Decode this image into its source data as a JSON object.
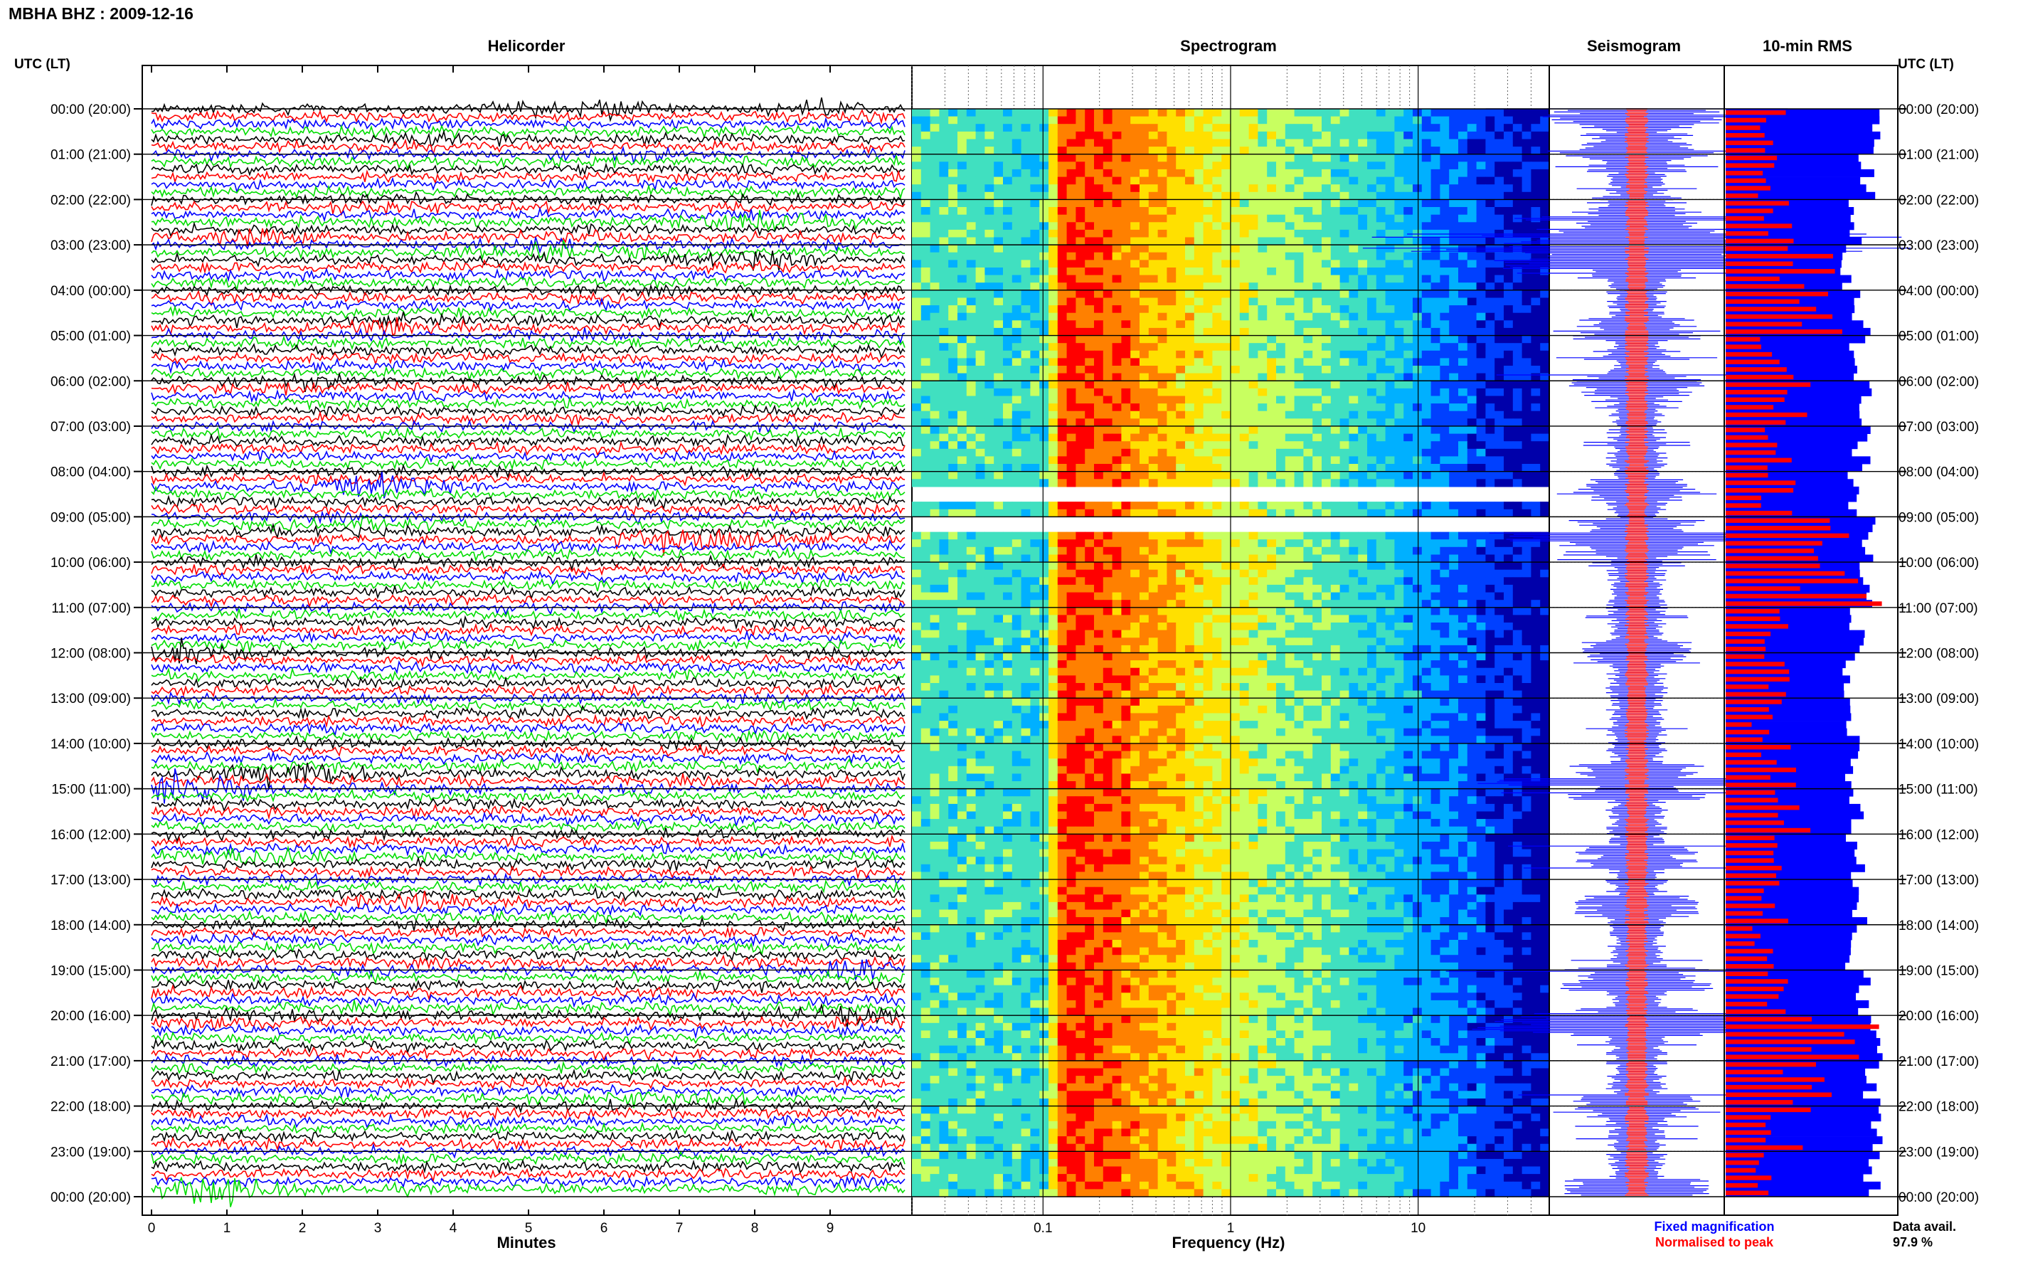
{
  "header": {
    "station_title": "MBHA BHZ : 2009-12-16",
    "time_axis_label": "UTC (LT)"
  },
  "panels": {
    "helicorder": "Helicorder",
    "spectrogram": "Spectrogram",
    "seismogram": "Seismogram",
    "rms": "10-min RMS"
  },
  "colors": {
    "trace_cycle": [
      "#000000",
      "#ff0000",
      "#0000ff",
      "#00dd00"
    ],
    "fixed": "#0000ff",
    "normalised": "#ff0000",
    "rms_fixed": "#0000ff",
    "rms_peak": "#ff0000"
  },
  "legend": {
    "fixed": "Fixed magnification",
    "normalised": "Normalised to peak",
    "data_avail_label": "Data avail.",
    "data_avail_value": "97.9 %"
  },
  "chart_data": [
    {
      "type": "line",
      "name": "helicorder",
      "title": "Helicorder",
      "xlabel": "Minutes",
      "xlim": [
        0,
        10
      ],
      "x_ticks": [
        "0",
        "1",
        "2",
        "3",
        "4",
        "5",
        "6",
        "7",
        "8",
        "9"
      ],
      "lines_per_hour": 6,
      "minutes_per_line": 10,
      "hour_labels": [
        "00:00 (20:00)",
        "01:00 (21:00)",
        "02:00 (22:00)",
        "03:00 (23:00)",
        "04:00 (00:00)",
        "05:00 (01:00)",
        "06:00 (02:00)",
        "07:00 (03:00)",
        "08:00 (04:00)",
        "09:00 (05:00)",
        "10:00 (06:00)",
        "11:00 (07:00)",
        "12:00 (08:00)",
        "13:00 (09:00)",
        "14:00 (10:00)",
        "15:00 (11:00)",
        "16:00 (12:00)",
        "17:00 (13:00)",
        "18:00 (14:00)",
        "19:00 (15:00)",
        "20:00 (16:00)",
        "21:00 (17:00)",
        "22:00 (18:00)",
        "23:00 (19:00)",
        "00:00 (20:00)"
      ],
      "events": [
        {
          "hour": 0.1,
          "minute": 5.8,
          "amp": 2.5
        },
        {
          "hour": 0.2,
          "minute": 9.0,
          "amp": 2.2
        },
        {
          "hour": 0.8,
          "minute": 3.6,
          "amp": 2.4
        },
        {
          "hour": 1.15,
          "minute": 6.2,
          "amp": 2.2
        },
        {
          "hour": 2.15,
          "minute": 3.2,
          "amp": 2.0
        },
        {
          "hour": 2.6,
          "minute": 8.0,
          "amp": 3.2
        },
        {
          "hour": 2.9,
          "minute": 1.2,
          "amp": 3.0
        },
        {
          "hour": 3.0,
          "minute": 5.4,
          "amp": 3.2
        },
        {
          "hour": 3.3,
          "minute": 5.3,
          "amp": 4.0
        },
        {
          "hour": 3.5,
          "minute": 8.1,
          "amp": 3.0
        },
        {
          "hour": 4.85,
          "minute": 3.2,
          "amp": 3.0
        },
        {
          "hour": 6.1,
          "minute": 2.0,
          "amp": 3.5
        },
        {
          "hour": 8.4,
          "minute": 3.0,
          "amp": 3.0
        },
        {
          "hour": 9.3,
          "minute": 3.0,
          "amp": 3.8
        },
        {
          "hour": 9.6,
          "minute": 7.5,
          "amp": 4.5
        },
        {
          "hour": 12.0,
          "minute": 0.3,
          "amp": 3.0
        },
        {
          "hour": 14.7,
          "minute": 2.0,
          "amp": 3.5
        },
        {
          "hour": 15.0,
          "minute": 0.4,
          "amp": 3.8
        },
        {
          "hour": 16.5,
          "minute": 1.5,
          "amp": 2.8
        },
        {
          "hour": 17.6,
          "minute": 3.6,
          "amp": 3.0
        },
        {
          "hour": 19.2,
          "minute": 9.3,
          "amp": 4.5
        },
        {
          "hour": 20.1,
          "minute": 0.9,
          "amp": 3.5
        },
        {
          "hour": 20.2,
          "minute": 9.2,
          "amp": 4.0
        },
        {
          "hour": 22.0,
          "minute": 6.6,
          "amp": 3.2
        },
        {
          "hour": 23.85,
          "minute": 0.9,
          "amp": 3.8
        }
      ]
    },
    {
      "type": "heatmap",
      "name": "spectrogram",
      "title": "Spectrogram",
      "xlabel": "Frequency (Hz)",
      "x_scale": "log",
      "xlim": [
        0.02,
        50
      ],
      "x_ticks": [
        {
          "value": 0.1,
          "label": "0.1"
        },
        {
          "value": 1,
          "label": "1"
        },
        {
          "value": 10,
          "label": "10"
        }
      ],
      "y_range_hours": [
        0,
        24
      ],
      "colormap": [
        "#0000aa",
        "#0040ff",
        "#00b0ff",
        "#40e0c0",
        "#c8ff60",
        "#ffe000",
        "#ff8000",
        "#ff0000"
      ],
      "profile": [
        {
          "freq": 0.02,
          "level": 0.45
        },
        {
          "freq": 0.1,
          "level": 0.42
        },
        {
          "freq": 0.13,
          "level": 0.92
        },
        {
          "freq": 0.3,
          "level": 0.8
        },
        {
          "freq": 1.0,
          "level": 0.6
        },
        {
          "freq": 5.0,
          "level": 0.42
        },
        {
          "freq": 10.0,
          "level": 0.3
        },
        {
          "freq": 50.0,
          "level": 0.05
        }
      ],
      "gaps_hours": [
        8.4,
        9.05,
        9.15
      ]
    },
    {
      "type": "line",
      "name": "seismogram",
      "title": "Seismogram",
      "y_range_hours": [
        0,
        24
      ],
      "series": [
        {
          "name": "Fixed magnification",
          "color": "#0000ff"
        },
        {
          "name": "Normalised to peak",
          "color": "#ff0000"
        }
      ]
    },
    {
      "type": "bar",
      "name": "rms",
      "title": "10-min RMS",
      "orientation": "horizontal",
      "bins_per_hour": 6,
      "hours": 24,
      "series": [
        {
          "name": "Fixed magnification",
          "color": "#0000ff",
          "hourly_level": [
            0.87,
            0.82,
            0.78,
            0.72,
            0.8,
            0.77,
            0.82,
            0.79,
            0.76,
            0.84,
            0.82,
            0.78,
            0.74,
            0.76,
            0.73,
            0.77,
            0.76,
            0.79,
            0.72,
            0.82,
            0.88,
            0.85,
            0.87,
            0.85
          ]
        },
        {
          "name": "Normalised to peak",
          "color": "#ff0000",
          "hourly_level": [
            0.3,
            0.3,
            0.32,
            0.55,
            0.7,
            0.35,
            0.4,
            0.35,
            0.33,
            0.58,
            0.75,
            0.32,
            0.3,
            0.27,
            0.35,
            0.42,
            0.3,
            0.3,
            0.28,
            0.38,
            0.82,
            0.5,
            0.4,
            0.3
          ]
        }
      ]
    }
  ]
}
